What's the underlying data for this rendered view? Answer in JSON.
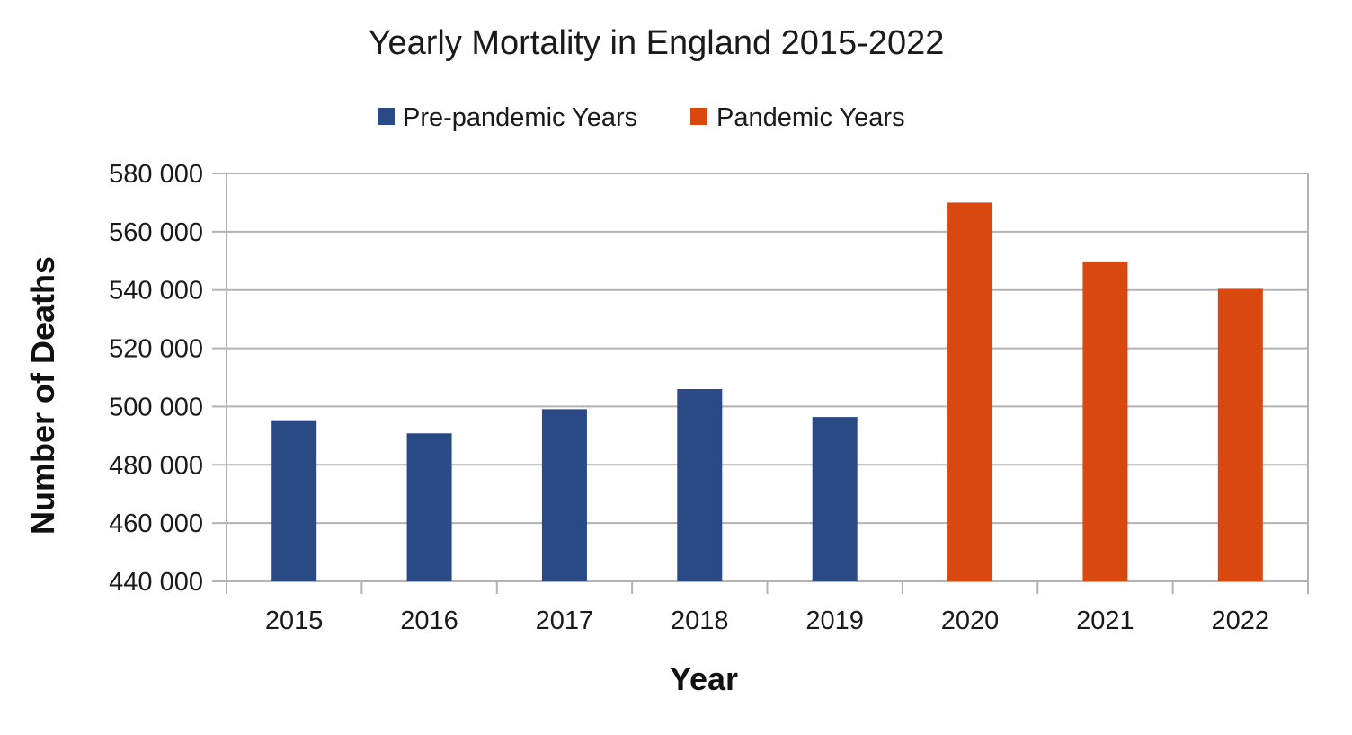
{
  "chart_data": {
    "type": "bar",
    "title": "Yearly Mortality in England 2015-2022",
    "xlabel": "Year",
    "ylabel": "Number of Deaths",
    "categories": [
      "2015",
      "2016",
      "2017",
      "2018",
      "2019",
      "2020",
      "2021",
      "2022"
    ],
    "ylim": [
      440000,
      580000
    ],
    "yticks": [
      440000,
      460000,
      480000,
      500000,
      520000,
      540000,
      560000,
      580000
    ],
    "ytick_labels": [
      "440 000",
      "460 000",
      "480 000",
      "500 000",
      "520 000",
      "540 000",
      "560 000",
      "580 000"
    ],
    "series": [
      {
        "name": "Pre-pandemic Years",
        "color": "#2a4a86",
        "values": [
          495300,
          490800,
          499100,
          506000,
          496400,
          null,
          null,
          null
        ]
      },
      {
        "name": "Pandemic Years",
        "color": "#d9480f",
        "values": [
          null,
          null,
          null,
          null,
          null,
          570000,
          549500,
          540400
        ]
      }
    ],
    "grid": true,
    "legend_position": "top-center"
  }
}
